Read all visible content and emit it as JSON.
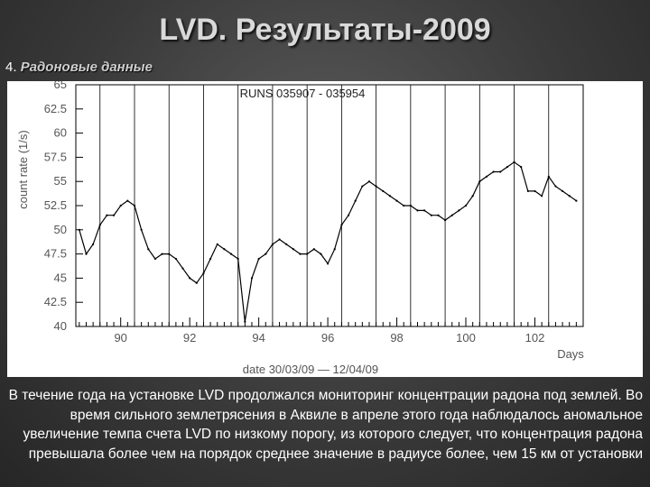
{
  "slide": {
    "title": "LVD. Результаты-2009",
    "section_number": "4.",
    "section_title": "Радоновые данные"
  },
  "caption": "В течение года на установке LVD продолжался мониторинг концентрации радона под землей. Во время сильного землетрясения в Аквиле в апреле этого года наблюдалось аномальное увеличение темпа счета LVD по низкому порогу, из которого следует, что концентрация радона превышала более чем на порядок среднее значение в радиусе более, чем 15 км от установки",
  "chart_data": {
    "type": "line",
    "title": "RUNS 035907 - 035954",
    "xlabel": "Days",
    "ylabel": "count rate (1/s)",
    "date_range_label": "date 30/03/09 — 12/04/09",
    "xlim": [
      88.7,
      103.4
    ],
    "ylim": [
      40,
      65
    ],
    "x_ticks": [
      90,
      92,
      94,
      96,
      98,
      100,
      102
    ],
    "y_ticks": [
      40,
      42.5,
      45,
      47.5,
      50,
      52.5,
      55,
      57.5,
      60,
      62.5,
      65
    ],
    "day_boundaries": [
      89.4,
      90.4,
      91.4,
      92.4,
      93.4,
      94.4,
      95.4,
      96.4,
      97.4,
      98.4,
      99.4,
      100.4,
      101.4,
      102.4
    ],
    "colors": {
      "line": "#000000",
      "background": "#ffffff"
    },
    "series": [
      {
        "x": [
          88.8,
          89.0,
          89.2,
          89.4,
          89.6,
          89.8,
          90.0,
          90.2,
          90.4,
          90.6,
          90.8,
          91.0,
          91.2,
          91.4,
          91.6,
          91.8,
          92.0,
          92.2,
          92.4,
          92.6,
          92.8,
          93.0,
          93.2,
          93.4,
          93.6,
          93.8,
          94.0,
          94.2,
          94.4,
          94.6,
          94.8,
          95.0,
          95.2,
          95.4,
          95.6,
          95.8,
          96.0,
          96.2,
          96.4,
          96.6,
          96.8,
          97.0,
          97.2,
          97.4,
          97.6,
          97.8,
          98.0,
          98.2,
          98.4,
          98.6,
          98.8,
          99.0,
          99.2,
          99.4,
          99.6,
          99.8,
          100.0,
          100.2,
          100.4,
          100.6,
          100.8,
          101.0,
          101.2,
          101.4,
          101.6,
          101.8,
          102.0,
          102.2,
          102.4,
          102.6,
          102.8,
          103.0,
          103.2
        ],
        "y": [
          50,
          47.5,
          48.5,
          50.5,
          51.5,
          51.5,
          52.5,
          53,
          52.5,
          50,
          48,
          47,
          47.5,
          47.5,
          47,
          46,
          45,
          44.5,
          45.5,
          47,
          48.5,
          48,
          47.5,
          47,
          40.5,
          45,
          47,
          47.5,
          48.5,
          49,
          48.5,
          48,
          47.5,
          47.5,
          48,
          47.5,
          46.5,
          48,
          50.5,
          51.5,
          53,
          54.5,
          55,
          54.5,
          54,
          53.5,
          53,
          52.5,
          52.5,
          52,
          52,
          51.5,
          51.5,
          51,
          51.5,
          52,
          52.5,
          53.5,
          55,
          55.5,
          56,
          56,
          56.5,
          57,
          56.5,
          54,
          54,
          53.5,
          55.5,
          54.5,
          54,
          53.5,
          53
        ]
      }
    ]
  }
}
